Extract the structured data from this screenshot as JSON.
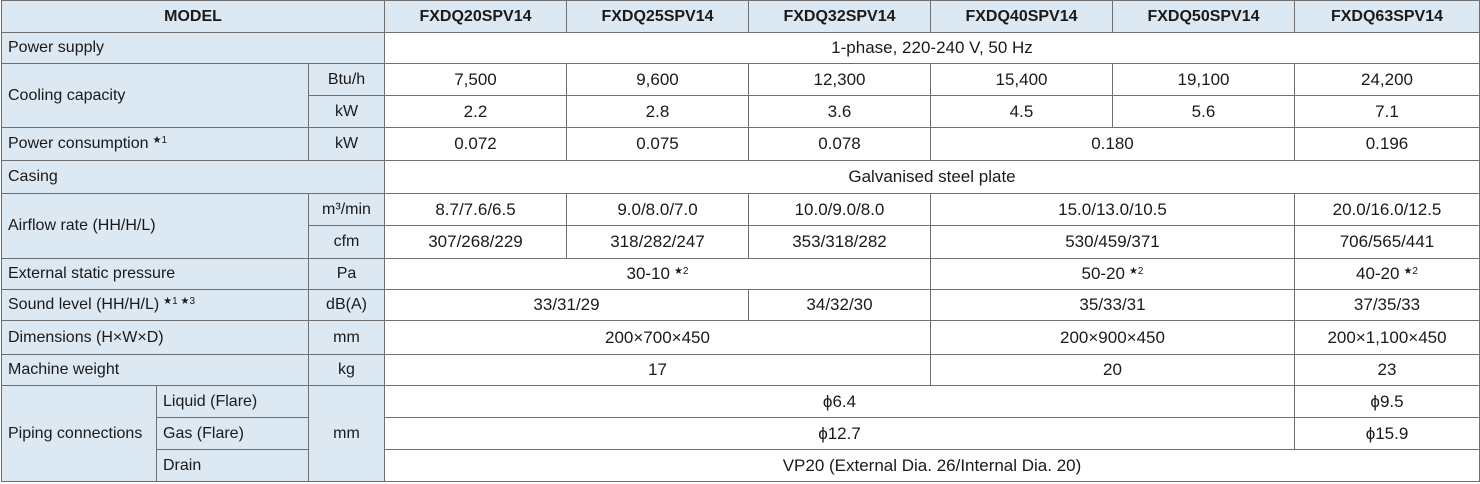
{
  "header": {
    "label": "MODEL",
    "models": [
      "FXDQ20SPV14",
      "FXDQ25SPV14",
      "FXDQ32SPV14",
      "FXDQ40SPV14",
      "FXDQ50SPV14",
      "FXDQ63SPV14"
    ]
  },
  "power_supply": {
    "label": "Power supply",
    "value": "1-phase, 220-240 V, 50 Hz"
  },
  "cooling_capacity": {
    "label": "Cooling capacity",
    "btu": {
      "unit": "Btu/h",
      "values": [
        "7,500",
        "9,600",
        "12,300",
        "15,400",
        "19,100",
        "24,200"
      ]
    },
    "kw": {
      "unit": "kW",
      "values": [
        "2.2",
        "2.8",
        "3.6",
        "4.5",
        "5.6",
        "7.1"
      ]
    }
  },
  "power_consumption": {
    "label": "Power consumption",
    "note": "★1",
    "unit": "kW",
    "values": [
      "0.072",
      "0.075",
      "0.078",
      "0.180",
      "0.196"
    ]
  },
  "casing": {
    "label": "Casing",
    "value": "Galvanised steel plate"
  },
  "airflow_rate": {
    "label": "Airflow rate (HH/H/L)",
    "m3": {
      "unit": "m³/min",
      "values": [
        "8.7/7.6/6.5",
        "9.0/8.0/7.0",
        "10.0/9.0/8.0",
        "15.0/13.0/10.5",
        "20.0/16.0/12.5"
      ]
    },
    "cfm": {
      "unit": "cfm",
      "values": [
        "307/268/229",
        "318/282/247",
        "353/318/282",
        "530/459/371",
        "706/565/441"
      ]
    }
  },
  "external_static_pressure": {
    "label": "External static pressure",
    "unit": "Pa",
    "values": [
      "30-10",
      "50-20",
      "40-20"
    ],
    "note": "★2"
  },
  "sound_level": {
    "label": "Sound level (HH/H/L)",
    "note": "★1 ★3",
    "unit": "dB(A)",
    "values": [
      "33/31/29",
      "34/32/30",
      "35/33/31",
      "37/35/33"
    ]
  },
  "dimensions": {
    "label": "Dimensions (H×W×D)",
    "unit": "mm",
    "values": [
      "200×700×450",
      "200×900×450",
      "200×1,100×450"
    ]
  },
  "machine_weight": {
    "label": "Machine weight",
    "unit": "kg",
    "values": [
      "17",
      "20",
      "23"
    ]
  },
  "piping_connections": {
    "label": "Piping connections",
    "unit": "mm",
    "liquid": {
      "label": "Liquid (Flare)",
      "values": [
        "ϕ6.4",
        "ϕ9.5"
      ]
    },
    "gas": {
      "label": "Gas (Flare)",
      "values": [
        "ϕ12.7",
        "ϕ15.9"
      ]
    },
    "drain": {
      "label": "Drain",
      "value": "VP20 (External Dia. 26/Internal Dia. 20)"
    }
  }
}
